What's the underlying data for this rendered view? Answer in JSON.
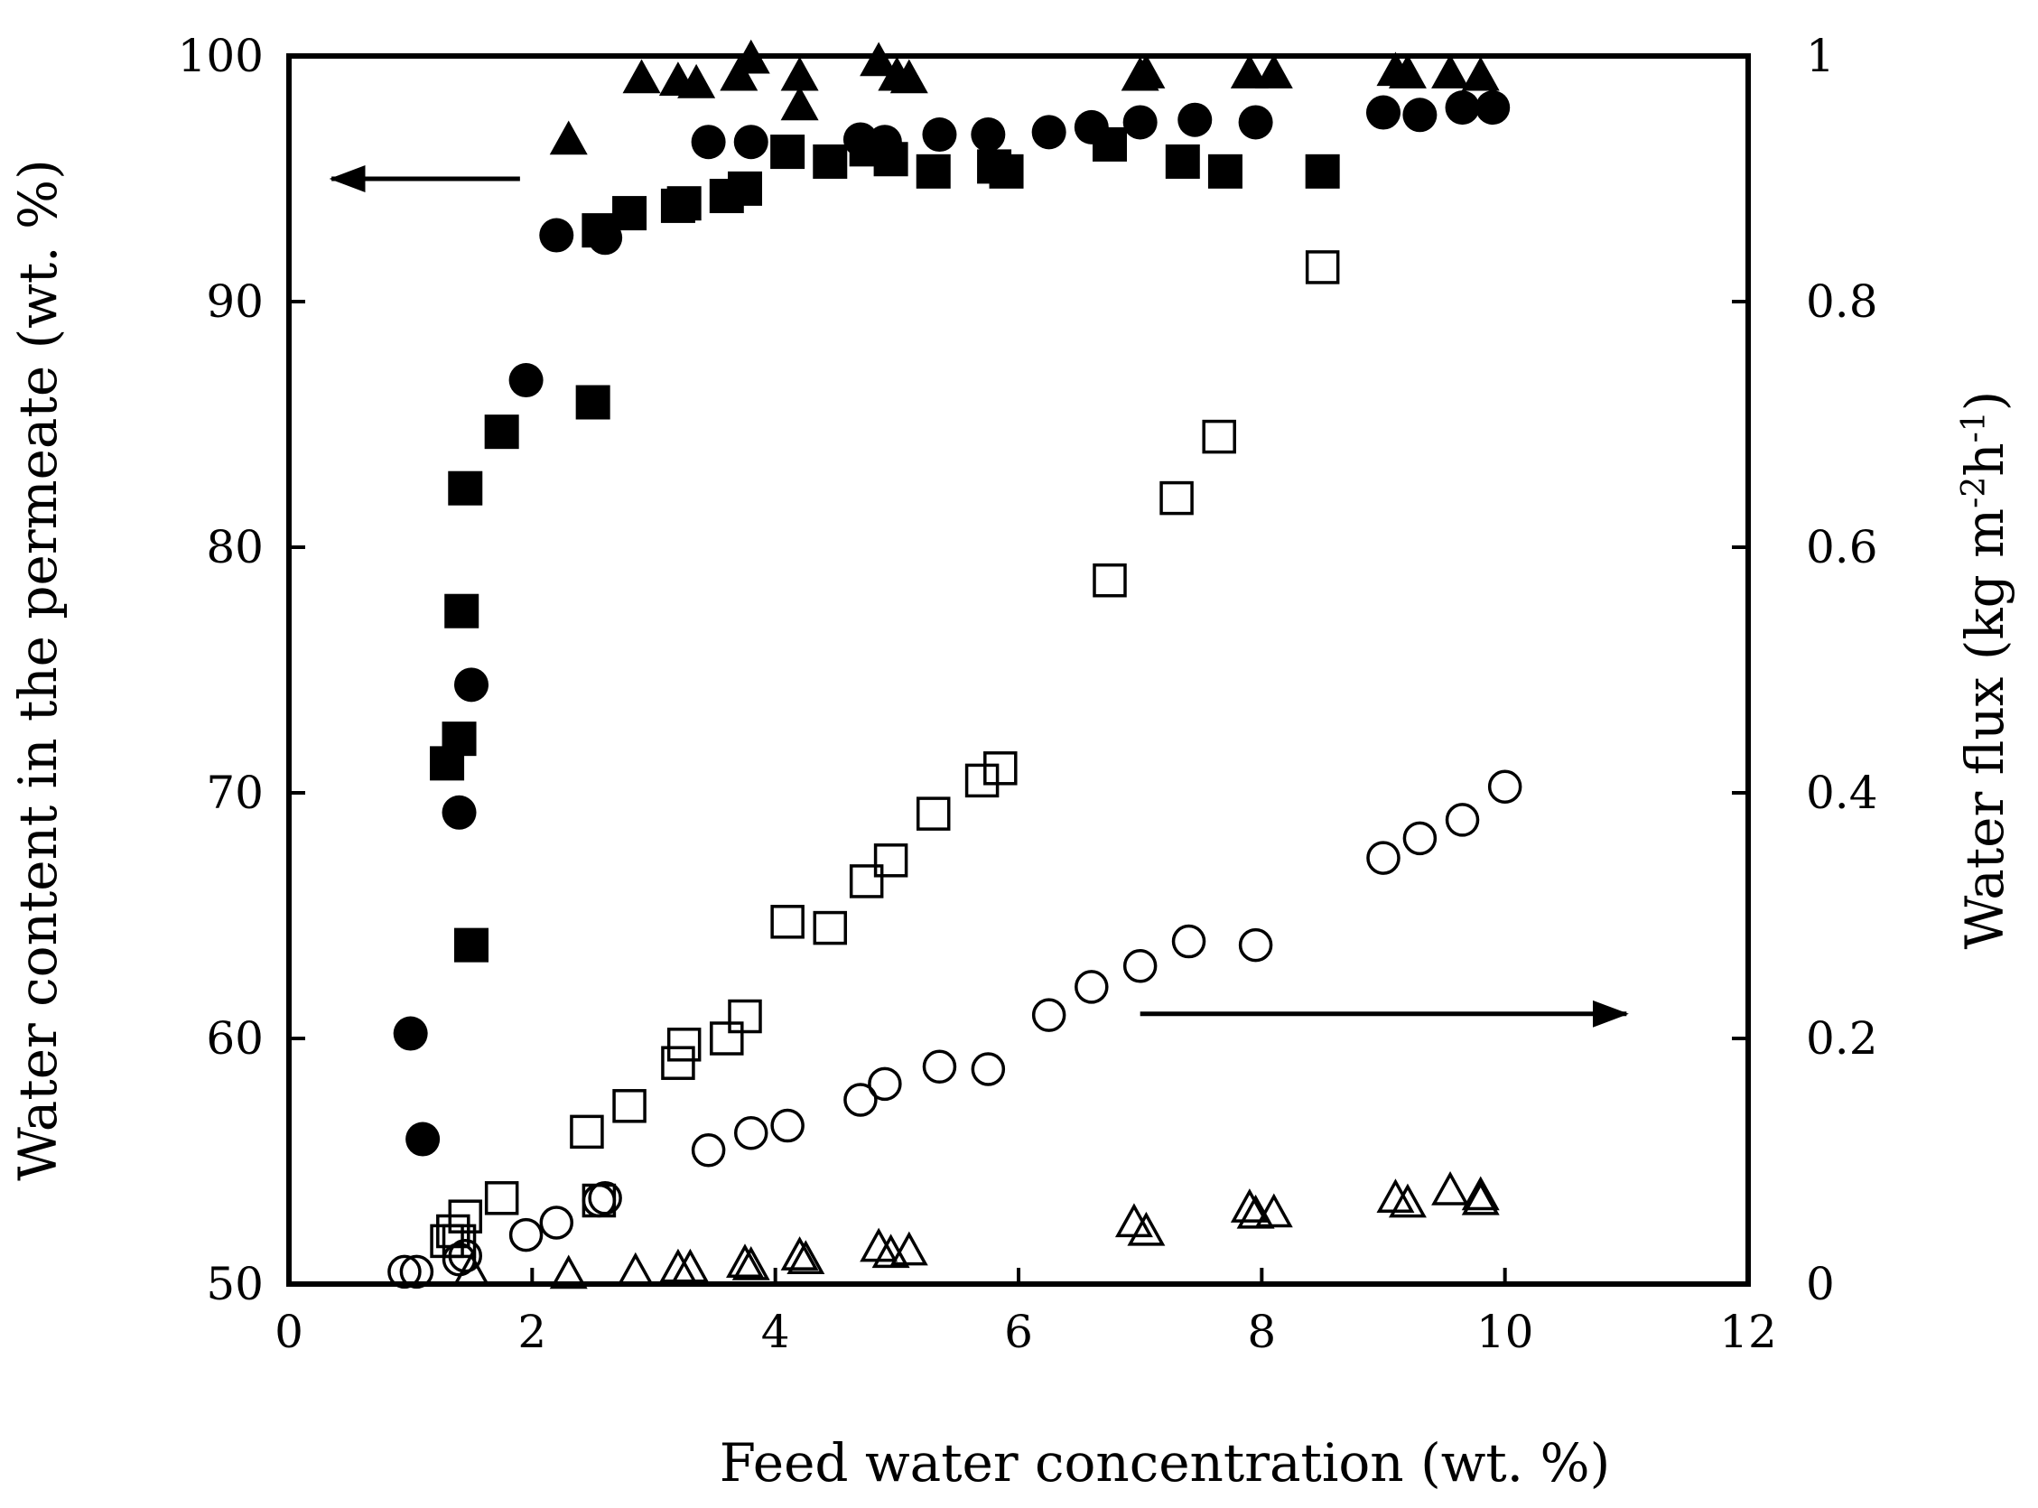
{
  "chart_data": {
    "type": "scatter",
    "title": "",
    "xlabel": "Feed water concentration (wt. %)",
    "ylabel": "Water content in the permeate (wt. %)",
    "y2label_main": "Water flux (kg m",
    "y2label_sup1": "-2",
    "y2label_mid": "h",
    "y2label_sup2": "-1",
    "y2label_end": ")",
    "xlim": [
      0,
      12
    ],
    "ylim": [
      50,
      100
    ],
    "y2lim": [
      0,
      1
    ],
    "x_ticks": [
      0,
      2,
      4,
      6,
      8,
      10,
      12
    ],
    "y_ticks": [
      50,
      60,
      70,
      80,
      90,
      100
    ],
    "y2_ticks": [
      0,
      0.2,
      0.4,
      0.6,
      0.8,
      1
    ],
    "y2_tick_labels": [
      "0",
      "0.2",
      "0.4",
      "0.6",
      "0.8",
      "1"
    ],
    "annotations": [
      {
        "type": "arrow",
        "direction": "left",
        "meaning": "left axis",
        "from": [
          1.9,
          95
        ],
        "to": [
          0.35,
          95
        ]
      },
      {
        "type": "arrow",
        "direction": "right",
        "meaning": "right axis",
        "from": [
          7,
          0.22
        ],
        "to": [
          11,
          0.22
        ]
      }
    ],
    "series": [
      {
        "name": "water content (circle)",
        "marker": "circle",
        "filled": true,
        "axis": "left",
        "points": [
          [
            1.0,
            60.2
          ],
          [
            1.1,
            55.9
          ],
          [
            1.4,
            69.2
          ],
          [
            1.5,
            74.4
          ],
          [
            1.95,
            86.8
          ],
          [
            2.2,
            92.7
          ],
          [
            2.6,
            92.6
          ],
          [
            3.45,
            96.5
          ],
          [
            3.8,
            96.5
          ],
          [
            4.7,
            96.6
          ],
          [
            4.9,
            96.5
          ],
          [
            5.35,
            96.8
          ],
          [
            5.75,
            96.8
          ],
          [
            6.25,
            96.9
          ],
          [
            6.6,
            97.1
          ],
          [
            7.0,
            97.3
          ],
          [
            7.45,
            97.4
          ],
          [
            7.95,
            97.3
          ],
          [
            9.0,
            97.7
          ],
          [
            9.3,
            97.6
          ],
          [
            9.65,
            97.9
          ],
          [
            9.9,
            97.9
          ]
        ]
      },
      {
        "name": "water content (square)",
        "marker": "square",
        "filled": true,
        "axis": "left",
        "points": [
          [
            1.3,
            71.2
          ],
          [
            1.4,
            72.2
          ],
          [
            1.42,
            77.4
          ],
          [
            1.45,
            82.4
          ],
          [
            1.5,
            63.8
          ],
          [
            1.75,
            84.7
          ],
          [
            2.5,
            85.9
          ],
          [
            2.55,
            92.9
          ],
          [
            2.8,
            93.6
          ],
          [
            3.2,
            93.9
          ],
          [
            3.25,
            94.0
          ],
          [
            3.6,
            94.3
          ],
          [
            3.75,
            94.6
          ],
          [
            4.1,
            96.1
          ],
          [
            4.45,
            95.7
          ],
          [
            4.75,
            96.2
          ],
          [
            4.95,
            95.8
          ],
          [
            5.3,
            95.3
          ],
          [
            5.8,
            95.5
          ],
          [
            5.9,
            95.3
          ],
          [
            6.75,
            96.4
          ],
          [
            7.35,
            95.7
          ],
          [
            7.7,
            95.3
          ],
          [
            8.5,
            95.3
          ]
        ]
      },
      {
        "name": "water content (triangle)",
        "marker": "triangle",
        "filled": true,
        "axis": "left",
        "points": [
          [
            2.3,
            96.6
          ],
          [
            2.9,
            99.1
          ],
          [
            3.2,
            99.0
          ],
          [
            3.35,
            98.9
          ],
          [
            3.7,
            99.2
          ],
          [
            3.8,
            99.9
          ],
          [
            4.2,
            99.2
          ],
          [
            4.2,
            98.0
          ],
          [
            4.85,
            99.8
          ],
          [
            5.0,
            99.2
          ],
          [
            5.1,
            99.1
          ],
          [
            7.0,
            99.2
          ],
          [
            7.05,
            99.3
          ],
          [
            7.9,
            99.3
          ],
          [
            8.1,
            99.3
          ],
          [
            9.1,
            99.4
          ],
          [
            9.2,
            99.3
          ],
          [
            9.55,
            99.3
          ],
          [
            9.8,
            99.2
          ]
        ]
      },
      {
        "name": "water flux (circle)",
        "marker": "circle",
        "filled": false,
        "axis": "right",
        "points": [
          [
            0.95,
            0.01
          ],
          [
            1.05,
            0.01
          ],
          [
            1.4,
            0.02
          ],
          [
            1.45,
            0.023
          ],
          [
            1.95,
            0.04
          ],
          [
            2.2,
            0.05
          ],
          [
            2.55,
            0.068
          ],
          [
            2.6,
            0.07
          ],
          [
            3.45,
            0.109
          ],
          [
            3.8,
            0.123
          ],
          [
            4.1,
            0.129
          ],
          [
            4.7,
            0.15
          ],
          [
            4.9,
            0.163
          ],
          [
            5.35,
            0.177
          ],
          [
            5.75,
            0.175
          ],
          [
            6.25,
            0.219
          ],
          [
            6.6,
            0.242
          ],
          [
            7.0,
            0.259
          ],
          [
            7.4,
            0.279
          ],
          [
            7.95,
            0.276
          ],
          [
            9.0,
            0.347
          ],
          [
            9.3,
            0.363
          ],
          [
            9.65,
            0.378
          ],
          [
            10.0,
            0.405
          ]
        ]
      },
      {
        "name": "water flux (square)",
        "marker": "square",
        "filled": false,
        "axis": "right",
        "points": [
          [
            1.3,
            0.035
          ],
          [
            1.35,
            0.043
          ],
          [
            1.4,
            0.035
          ],
          [
            1.45,
            0.055
          ],
          [
            1.75,
            0.07
          ],
          [
            2.45,
            0.124
          ],
          [
            2.55,
            0.068
          ],
          [
            2.8,
            0.145
          ],
          [
            3.2,
            0.18
          ],
          [
            3.25,
            0.195
          ],
          [
            3.6,
            0.2
          ],
          [
            3.75,
            0.218
          ],
          [
            4.1,
            0.295
          ],
          [
            4.45,
            0.29
          ],
          [
            4.75,
            0.328
          ],
          [
            4.95,
            0.345
          ],
          [
            5.3,
            0.383
          ],
          [
            5.7,
            0.41
          ],
          [
            5.85,
            0.42
          ],
          [
            6.75,
            0.573
          ],
          [
            7.3,
            0.64
          ],
          [
            7.65,
            0.69
          ],
          [
            8.5,
            0.828
          ]
        ]
      },
      {
        "name": "water flux (triangle)",
        "marker": "triangle",
        "filled": false,
        "axis": "right",
        "points": [
          [
            1.5,
            0.01
          ],
          [
            2.3,
            0.008
          ],
          [
            2.85,
            0.01
          ],
          [
            3.2,
            0.013
          ],
          [
            3.3,
            0.013
          ],
          [
            3.75,
            0.017
          ],
          [
            3.8,
            0.015
          ],
          [
            4.2,
            0.023
          ],
          [
            4.25,
            0.02
          ],
          [
            4.85,
            0.03
          ],
          [
            4.95,
            0.025
          ],
          [
            5.1,
            0.027
          ],
          [
            6.95,
            0.05
          ],
          [
            7.05,
            0.043
          ],
          [
            7.9,
            0.062
          ],
          [
            7.95,
            0.057
          ],
          [
            8.1,
            0.058
          ],
          [
            9.1,
            0.07
          ],
          [
            9.2,
            0.066
          ],
          [
            9.55,
            0.076
          ],
          [
            9.8,
            0.072
          ],
          [
            9.8,
            0.068
          ]
        ]
      }
    ]
  }
}
